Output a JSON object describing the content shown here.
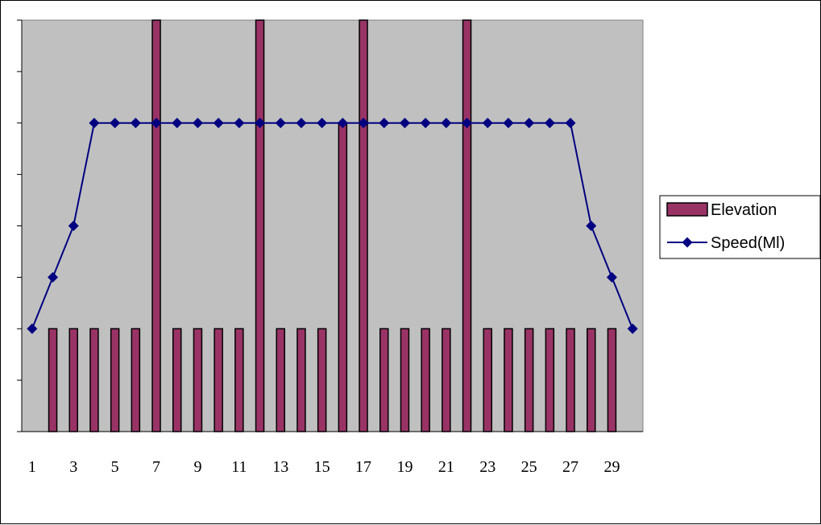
{
  "chart_data": {
    "type": "bar",
    "title": "",
    "xlabel": "",
    "ylabel": "",
    "x": [
      1,
      2,
      3,
      4,
      5,
      6,
      7,
      8,
      9,
      10,
      11,
      12,
      13,
      14,
      15,
      16,
      17,
      18,
      19,
      20,
      21,
      22,
      23,
      24,
      25,
      26,
      27,
      28,
      29,
      30
    ],
    "x_tick_labels": [
      "1",
      "3",
      "5",
      "7",
      "9",
      "11",
      "13",
      "15",
      "17",
      "19",
      "21",
      "23",
      "25",
      "27",
      "29"
    ],
    "ylim": [
      0,
      8
    ],
    "y_gridlines": false,
    "series": [
      {
        "name": "Elevation",
        "type": "bar",
        "color": "#993366",
        "values": [
          0,
          2,
          2,
          2,
          2,
          2,
          8,
          2,
          2,
          2,
          2,
          8,
          2,
          2,
          2,
          6,
          8,
          2,
          2,
          2,
          2,
          8,
          2,
          2,
          2,
          2,
          2,
          2,
          2,
          0
        ]
      },
      {
        "name": "Speed(Ml)",
        "type": "line",
        "color": "#000080",
        "marker": "diamond",
        "values": [
          2,
          3,
          4,
          6,
          6,
          6,
          6,
          6,
          6,
          6,
          6,
          6,
          6,
          6,
          6,
          6,
          6,
          6,
          6,
          6,
          6,
          6,
          6,
          6,
          6,
          6,
          6,
          4,
          3,
          2
        ]
      }
    ],
    "legend": {
      "position": "right"
    },
    "colors": {
      "plot_background": "#c0c0c0",
      "bar_fill": "#993366",
      "line": "#000080"
    }
  }
}
